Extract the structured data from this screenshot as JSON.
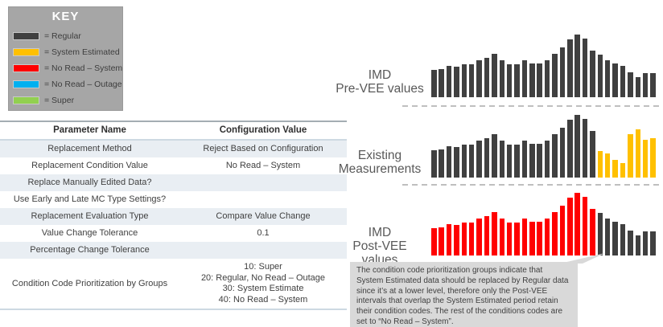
{
  "key": {
    "title": "KEY",
    "items": [
      {
        "name": "regular-color-swatch",
        "color": "#404040",
        "label": "= Regular"
      },
      {
        "name": "system-estimated-color-swatch",
        "color": "#FFC000",
        "label": "= System Estimated"
      },
      {
        "name": "no-read-system-color-swatch",
        "color": "#FF0000",
        "label": "= No Read – System"
      },
      {
        "name": "no-read-outage-color-swatch",
        "color": "#00B0F0",
        "label": "= No Read – Outage"
      },
      {
        "name": "super-color-swatch",
        "color": "#92D050",
        "label": "= Super"
      }
    ]
  },
  "table": {
    "headers": [
      "Parameter Name",
      "Configuration Value"
    ],
    "rows": [
      {
        "param": "Replacement Method",
        "value": "Reject Based on Configuration"
      },
      {
        "param": "Replacement Condition Value",
        "value": "No Read – System"
      },
      {
        "param": "Replace Manually Edited Data?",
        "value": ""
      },
      {
        "param": "Use Early and Late MC Type Settings?",
        "value": ""
      },
      {
        "param": "Replacement Evaluation Type",
        "value": "Compare Value Change"
      },
      {
        "param": "Value Change Tolerance",
        "value": "0.1"
      },
      {
        "param": "Percentage Change Tolerance",
        "value": ""
      },
      {
        "param": "Condition Code Prioritization by Groups",
        "value": [
          "10: Super",
          "20: Regular, No Read – Outage",
          "30: System Estimate",
          "40: No Read – System"
        ]
      }
    ]
  },
  "chart_data": [
    {
      "type": "bar",
      "title": "IMD Pre-VEE values",
      "label_lines": [
        "IMD",
        "Pre-VEE values"
      ],
      "xlabel": "",
      "ylabel": "",
      "axis": "none",
      "grid": false,
      "unit": "relative height (px, max 80)",
      "values": [
        34,
        35,
        39,
        38,
        41,
        41,
        46,
        49,
        54,
        46,
        41,
        41,
        46,
        42,
        42,
        46,
        54,
        62,
        72,
        78,
        73,
        58,
        53,
        46,
        42,
        39,
        31,
        25,
        30,
        30
      ],
      "segments": [
        {
          "count": 30,
          "condition": "Regular",
          "color": "#404040"
        }
      ]
    },
    {
      "type": "bar",
      "title": "Existing Measurements",
      "label_lines": [
        "Existing",
        "Measurements"
      ],
      "xlabel": "",
      "ylabel": "",
      "axis": "none",
      "grid": false,
      "unit": "relative height (px, max 80)",
      "values": [
        34,
        35,
        39,
        38,
        41,
        41,
        46,
        49,
        54,
        46,
        41,
        41,
        46,
        42,
        42,
        46,
        54,
        62,
        72,
        78,
        73,
        58,
        33,
        30,
        22,
        18,
        54,
        60,
        47,
        49
      ],
      "segments": [
        {
          "count": 22,
          "condition": "Regular",
          "color": "#404040"
        },
        {
          "count": 8,
          "condition": "System Estimated",
          "color": "#FFC000"
        }
      ]
    },
    {
      "type": "bar",
      "title": "IMD Post-VEE values",
      "label_lines": [
        "IMD",
        "Post-VEE values"
      ],
      "xlabel": "",
      "ylabel": "",
      "axis": "none",
      "grid": false,
      "unit": "relative height (px, max 80)",
      "values": [
        34,
        35,
        39,
        38,
        41,
        41,
        46,
        49,
        54,
        46,
        41,
        41,
        46,
        42,
        42,
        46,
        54,
        62,
        72,
        78,
        73,
        58,
        53,
        46,
        42,
        39,
        31,
        25,
        30,
        30
      ],
      "segments": [
        {
          "count": 22,
          "condition": "No Read – System",
          "color": "#FF0000"
        },
        {
          "count": 8,
          "condition": "Regular",
          "color": "#404040"
        }
      ]
    }
  ],
  "note": {
    "text": "The condition code prioritization groups indicate that System Estimated data should be replaced by Regular data since it’s at a lower level, therefore only the Post-VEE intervals that overlap the System Estimated period retain their condition codes.  The rest of the conditions codes are set to “No Read – System”.",
    "background": "#d9d9d9"
  },
  "colors": {
    "bar_regular": "#404040",
    "bar_system_estimated": "#FFC000",
    "bar_no_read_system": "#FF0000",
    "key_background": "#a6a6a6",
    "table_alt_row": "#e9eef3",
    "dashed_line": "#bfbfbf"
  }
}
